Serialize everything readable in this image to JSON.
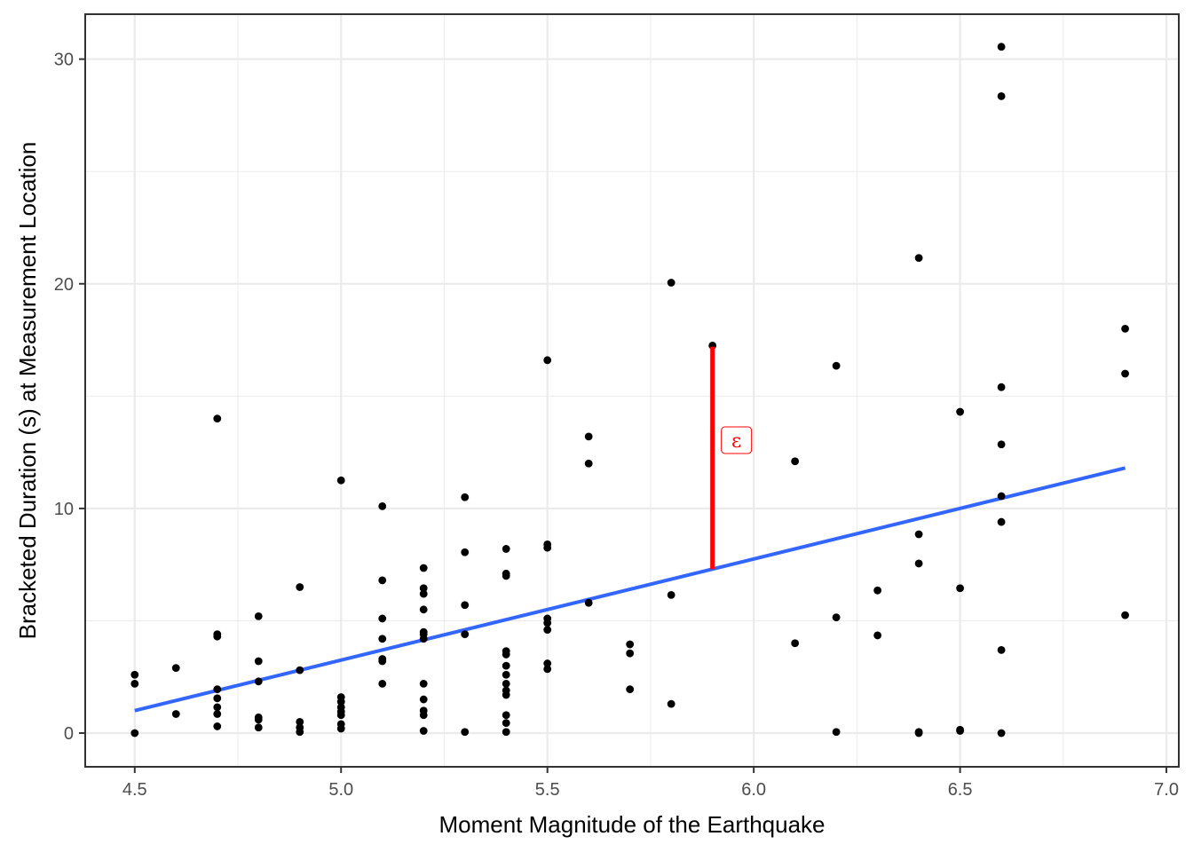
{
  "chart_data": {
    "type": "scatter",
    "title": "",
    "xlabel": "Moment Magnitude of the Earthquake",
    "ylabel": "Bracketed Duration (s) at Measurement Location",
    "xlim": [
      4.38,
      7.03
    ],
    "ylim": [
      -1.5,
      32
    ],
    "x_ticks": [
      4.5,
      5.0,
      5.5,
      6.0,
      6.5,
      7.0
    ],
    "x_tick_labels": [
      "4.5",
      "5.0",
      "5.5",
      "6.0",
      "6.5",
      "7.0"
    ],
    "y_ticks": [
      0,
      10,
      20,
      30
    ],
    "y_tick_labels": [
      "0",
      "10",
      "20",
      "30"
    ],
    "grid": true,
    "legend": "none",
    "colors": {
      "points": "#000000",
      "fit": "#3366ff",
      "residual": "#ff0000",
      "grid": "#ebebeb",
      "panel_border": "#333333"
    },
    "points": [
      [
        4.5,
        2.6
      ],
      [
        4.5,
        2.2
      ],
      [
        4.5,
        0.0
      ],
      [
        4.6,
        2.9
      ],
      [
        4.6,
        0.85
      ],
      [
        4.7,
        14.0
      ],
      [
        4.7,
        4.4
      ],
      [
        4.7,
        4.3
      ],
      [
        4.7,
        1.95
      ],
      [
        4.7,
        1.55
      ],
      [
        4.7,
        1.15
      ],
      [
        4.7,
        0.85
      ],
      [
        4.7,
        0.3
      ],
      [
        4.8,
        5.2
      ],
      [
        4.8,
        3.2
      ],
      [
        4.8,
        2.3
      ],
      [
        4.8,
        0.7
      ],
      [
        4.8,
        0.6
      ],
      [
        4.8,
        0.25
      ],
      [
        4.9,
        6.5
      ],
      [
        4.9,
        2.8
      ],
      [
        4.9,
        0.5
      ],
      [
        4.9,
        0.25
      ],
      [
        4.9,
        0.05
      ],
      [
        5.0,
        11.25
      ],
      [
        5.0,
        1.6
      ],
      [
        5.0,
        1.4
      ],
      [
        5.0,
        1.15
      ],
      [
        5.0,
        0.95
      ],
      [
        5.0,
        0.8
      ],
      [
        5.0,
        0.4
      ],
      [
        5.0,
        0.2
      ],
      [
        5.1,
        10.1
      ],
      [
        5.1,
        6.8
      ],
      [
        5.1,
        5.1
      ],
      [
        5.1,
        4.2
      ],
      [
        5.1,
        3.3
      ],
      [
        5.1,
        3.2
      ],
      [
        5.1,
        2.2
      ],
      [
        5.2,
        7.35
      ],
      [
        5.2,
        6.45
      ],
      [
        5.2,
        6.2
      ],
      [
        5.2,
        5.5
      ],
      [
        5.2,
        4.5
      ],
      [
        5.2,
        4.4
      ],
      [
        5.2,
        4.2
      ],
      [
        5.2,
        2.2
      ],
      [
        5.2,
        1.5
      ],
      [
        5.2,
        1.0
      ],
      [
        5.2,
        0.8
      ],
      [
        5.2,
        0.1
      ],
      [
        5.3,
        10.5
      ],
      [
        5.3,
        8.05
      ],
      [
        5.3,
        5.7
      ],
      [
        5.3,
        4.4
      ],
      [
        5.3,
        0.05
      ],
      [
        5.4,
        8.2
      ],
      [
        5.4,
        7.1
      ],
      [
        5.4,
        7.0
      ],
      [
        5.4,
        3.65
      ],
      [
        5.4,
        3.5
      ],
      [
        5.4,
        3.0
      ],
      [
        5.4,
        2.6
      ],
      [
        5.4,
        2.2
      ],
      [
        5.4,
        1.9
      ],
      [
        5.4,
        1.7
      ],
      [
        5.4,
        0.8
      ],
      [
        5.4,
        0.45
      ],
      [
        5.4,
        0.05
      ],
      [
        5.5,
        16.6
      ],
      [
        5.5,
        8.4
      ],
      [
        5.5,
        8.25
      ],
      [
        5.5,
        5.1
      ],
      [
        5.5,
        4.9
      ],
      [
        5.5,
        4.6
      ],
      [
        5.5,
        3.1
      ],
      [
        5.5,
        2.85
      ],
      [
        5.6,
        13.2
      ],
      [
        5.6,
        12.0
      ],
      [
        5.6,
        5.8
      ],
      [
        5.7,
        3.95
      ],
      [
        5.7,
        3.55
      ],
      [
        5.7,
        1.95
      ],
      [
        5.8,
        20.05
      ],
      [
        5.8,
        6.15
      ],
      [
        5.8,
        1.3
      ],
      [
        5.9,
        17.25
      ],
      [
        6.1,
        12.1
      ],
      [
        6.1,
        4.0
      ],
      [
        6.2,
        16.35
      ],
      [
        6.2,
        5.15
      ],
      [
        6.2,
        0.05
      ],
      [
        6.3,
        6.35
      ],
      [
        6.3,
        4.35
      ],
      [
        6.4,
        21.15
      ],
      [
        6.4,
        8.85
      ],
      [
        6.4,
        7.55
      ],
      [
        6.4,
        0.05
      ],
      [
        6.4,
        0.0
      ],
      [
        6.5,
        14.3
      ],
      [
        6.5,
        6.45
      ],
      [
        6.5,
        0.15
      ],
      [
        6.5,
        0.1
      ],
      [
        6.6,
        30.55
      ],
      [
        6.6,
        28.35
      ],
      [
        6.6,
        15.4
      ],
      [
        6.6,
        12.85
      ],
      [
        6.6,
        10.55
      ],
      [
        6.6,
        9.4
      ],
      [
        6.6,
        3.7
      ],
      [
        6.6,
        0.0
      ],
      [
        6.9,
        18.0
      ],
      [
        6.9,
        16.0
      ],
      [
        6.9,
        5.25
      ]
    ],
    "fit_line": {
      "x": [
        4.5,
        6.9
      ],
      "y": [
        1.0,
        11.8
      ]
    },
    "residual": {
      "x": 5.9,
      "y_from": 7.3,
      "y_to": 17.2,
      "label": "ε"
    }
  }
}
